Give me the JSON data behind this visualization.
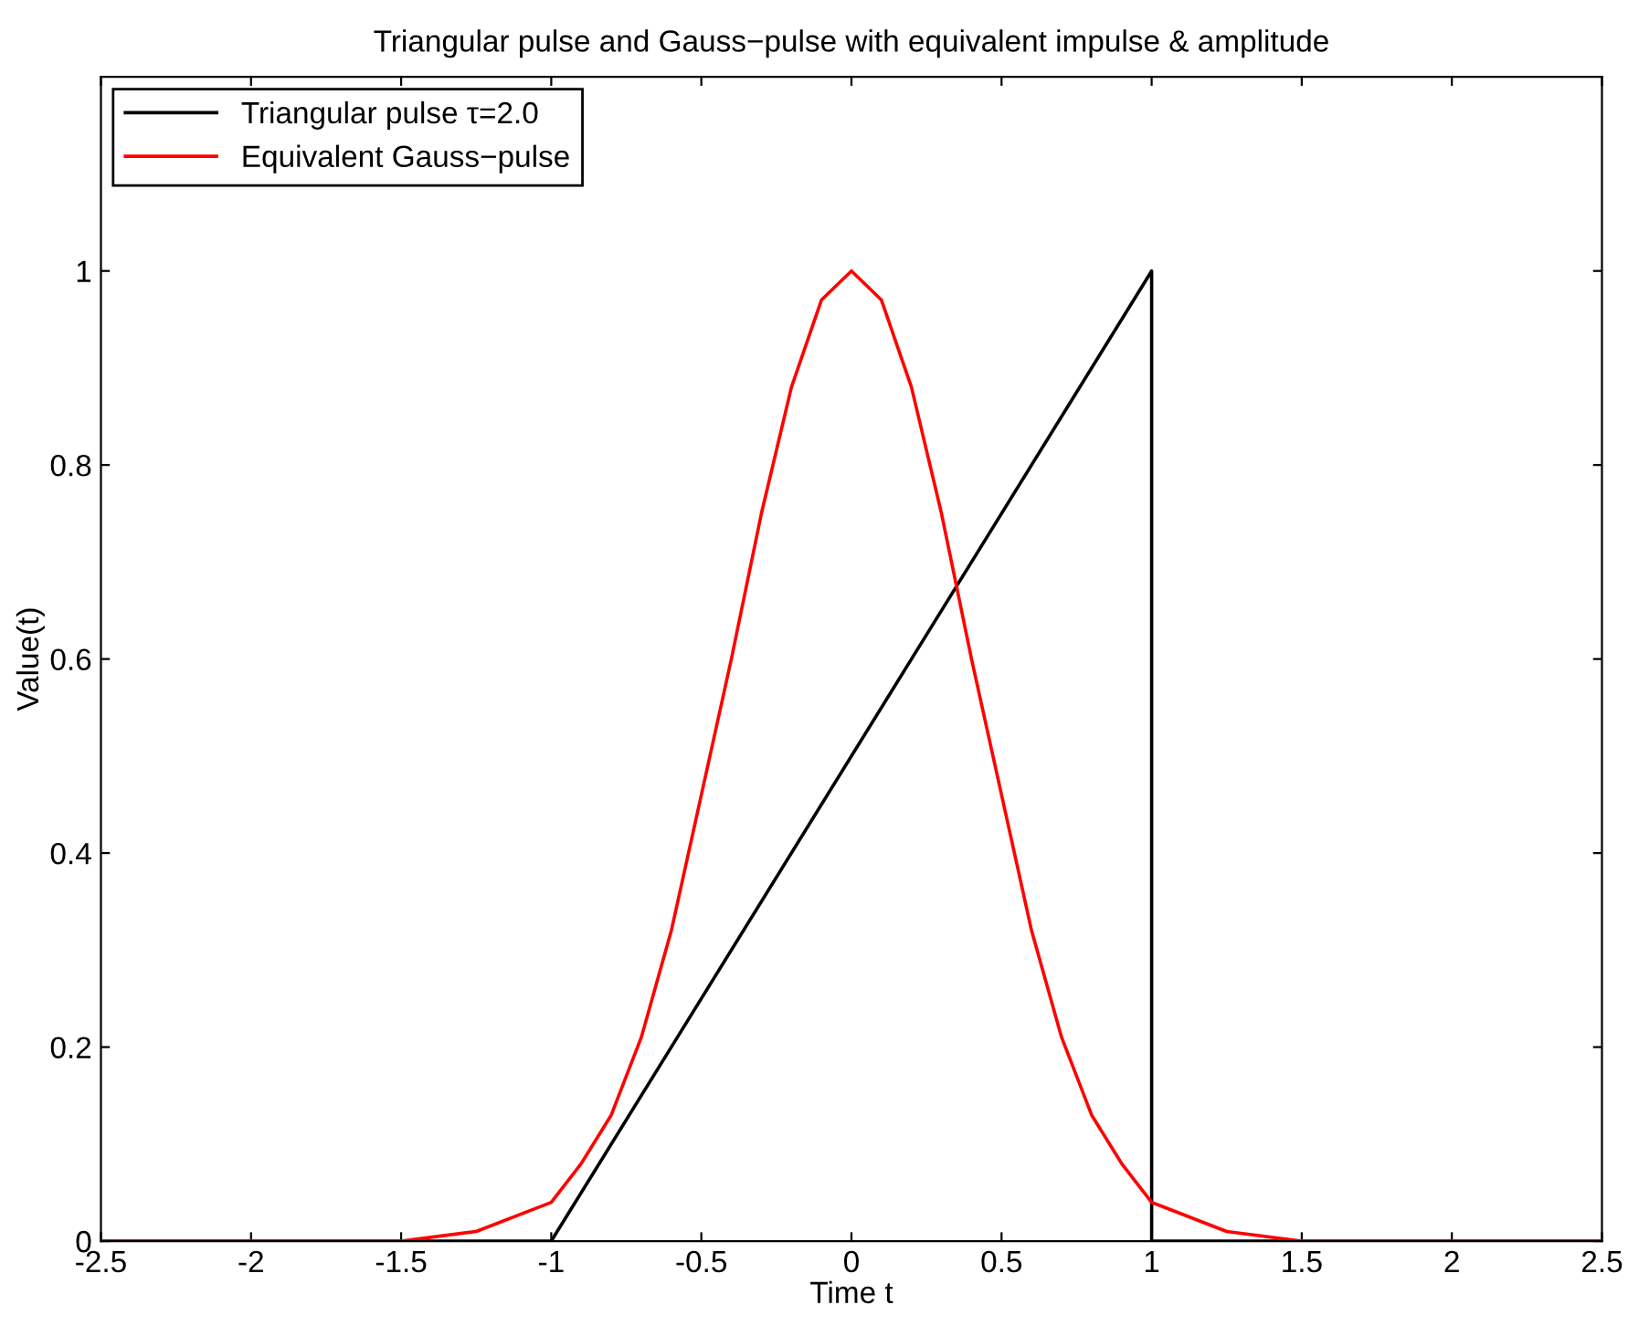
{
  "chart_data": {
    "type": "line",
    "title": "Triangular pulse and Gauss−pulse with equivalent impulse & amplitude",
    "xlabel": "Time t",
    "ylabel": "Value(t)",
    "series": [
      {
        "name": "Triangular pulse τ=2.0",
        "color": "#000000",
        "x": [
          -2.5,
          -1,
          1,
          1,
          2.5
        ],
        "values": [
          0,
          0,
          1,
          0,
          0
        ]
      },
      {
        "name": "Equivalent Gauss−pulse",
        "color": "#ff0000",
        "x": [
          -2.5,
          -2,
          -1.5,
          -1.25,
          -1,
          -0.9,
          -0.8,
          -0.7,
          -0.6,
          -0.5,
          -0.4,
          -0.3,
          -0.2,
          -0.1,
          0,
          0.1,
          0.2,
          0.3,
          0.4,
          0.5,
          0.6,
          0.7,
          0.8,
          0.9,
          1,
          1.25,
          1.5,
          2,
          2.5
        ],
        "values": [
          0,
          0,
          0,
          0.01,
          0.04,
          0.08,
          0.13,
          0.21,
          0.32,
          0.46,
          0.6,
          0.75,
          0.88,
          0.97,
          1,
          0.97,
          0.88,
          0.75,
          0.6,
          0.46,
          0.32,
          0.21,
          0.13,
          0.08,
          0.04,
          0.01,
          0,
          0,
          0
        ]
      }
    ],
    "xlim": [
      -2.5,
      2.5
    ],
    "xticks": [
      -2.5,
      -2,
      -1.5,
      -1,
      -0.5,
      0,
      0.5,
      1,
      1.5,
      2,
      2.5
    ],
    "ylim": [
      0,
      1.2
    ],
    "yticks": [
      0,
      0.2,
      0.4,
      0.6,
      0.8,
      1
    ],
    "legend": "top left",
    "grid": false
  }
}
